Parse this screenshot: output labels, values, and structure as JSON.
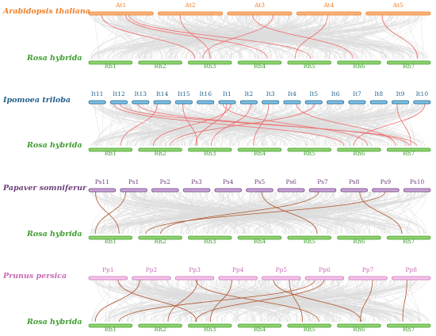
{
  "colors": {
    "bundle": "#d9d9d9",
    "rosa": "#3f9e2e",
    "rosa_fill": "#8fd16d",
    "arabidopsis": "#f07f28",
    "arabidopsis_fill": "#f6b27a",
    "ipomoea": "#1f5f8a",
    "ipomoea_fill": "#7bc0e4",
    "papaver": "#6b3f78",
    "papaver_fill": "#c7a3d6",
    "prunus": "#c96ab2",
    "prunus_fill": "#f5c6ec",
    "link_red": "#f06a6a",
    "link_brown": "#b0562d"
  },
  "panels": [
    {
      "id": "arabidopsis",
      "top_species": "Arabidopsis thaliana",
      "top_color": "arabidopsis",
      "top_chromosomes": [
        "At1",
        "At2",
        "At3",
        "At4",
        "At5"
      ],
      "bottom_species": "Rosa hybrida",
      "bottom_chromosomes": [
        "Rh1",
        "Rh2",
        "Rh3",
        "Rh4",
        "Rh5",
        "Rh6",
        "Rh7"
      ],
      "link_color": "link_red",
      "links": [
        [
          0,
          2
        ],
        [
          0,
          3
        ],
        [
          1,
          2
        ],
        [
          2,
          2
        ],
        [
          3,
          4
        ],
        [
          4,
          6
        ],
        [
          0,
          4
        ],
        [
          2,
          5
        ]
      ]
    },
    {
      "id": "ipomoea",
      "top_species": "Ipomoea triloba",
      "top_color": "ipomoea",
      "top_chromosomes": [
        "It11",
        "It12",
        "It13",
        "It14",
        "It15",
        "It16",
        "It1",
        "It2",
        "It3",
        "It4",
        "It5",
        "It6",
        "It7",
        "It8",
        "It9",
        "It10"
      ],
      "bottom_species": "Rosa hybrida",
      "bottom_chromosomes": [
        "Rh1",
        "Rh2",
        "Rh3",
        "Rh4",
        "Rh5",
        "Rh6",
        "Rh7"
      ],
      "link_color": "link_red",
      "links": [
        [
          1,
          5
        ],
        [
          1,
          6
        ],
        [
          2,
          6
        ],
        [
          6,
          1
        ],
        [
          6,
          2
        ],
        [
          6,
          5
        ],
        [
          7,
          2
        ],
        [
          8,
          3
        ],
        [
          9,
          6
        ],
        [
          10,
          1
        ],
        [
          14,
          6
        ],
        [
          15,
          5
        ],
        [
          4,
          2
        ],
        [
          3,
          0
        ]
      ]
    },
    {
      "id": "papaver",
      "top_species": "Papaver somniferur",
      "top_color": "papaver",
      "top_chromosomes": [
        "Ps11",
        "Ps1",
        "Ps2",
        "Ps3",
        "Ps4",
        "Ps5",
        "Ps6",
        "Ps7",
        "Ps8",
        "Ps9",
        "Ps10"
      ],
      "bottom_species": "Rosa hybrida",
      "bottom_chromosomes": [
        "Rh1",
        "Rh2",
        "Rh3",
        "Rh4",
        "Rh5",
        "Rh6",
        "Rh7"
      ],
      "link_color": "link_brown",
      "links": [
        [
          1,
          0
        ],
        [
          5,
          4
        ],
        [
          7,
          1
        ],
        [
          8,
          6
        ],
        [
          9,
          1
        ],
        [
          0,
          0
        ]
      ]
    },
    {
      "id": "prunus",
      "top_species": "Prunus persica",
      "top_color": "prunus",
      "top_chromosomes": [
        "Pp1",
        "Pp2",
        "Pp3",
        "Pp4",
        "Pp5",
        "Pp6",
        "Pp7",
        "Pp8"
      ],
      "bottom_species": "Rosa hybrida",
      "bottom_chromosomes": [
        "Rh1",
        "Rh2",
        "Rh3",
        "Rh4",
        "Rh5",
        "Rh6",
        "Rh7"
      ],
      "link_color": "link_brown",
      "links": [
        [
          1,
          0
        ],
        [
          2,
          1
        ],
        [
          3,
          2
        ],
        [
          4,
          4
        ],
        [
          5,
          2
        ],
        [
          5,
          0
        ],
        [
          6,
          5
        ],
        [
          7,
          6
        ],
        [
          0,
          2
        ],
        [
          2,
          4
        ],
        [
          4,
          5
        ]
      ]
    }
  ]
}
